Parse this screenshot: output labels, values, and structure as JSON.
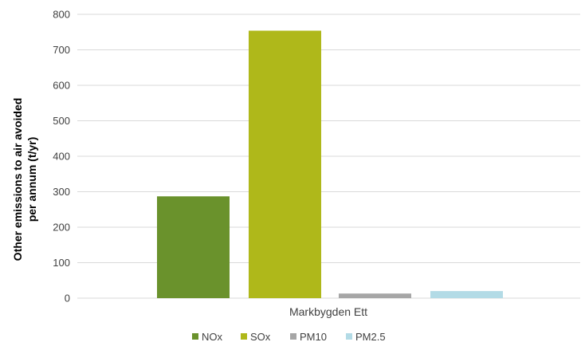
{
  "chart_data": {
    "type": "bar",
    "categories": [
      "Markbygden Ett"
    ],
    "series": [
      {
        "name": "NOx",
        "values": [
          287
        ],
        "color": "#6a922c"
      },
      {
        "name": "SOx",
        "values": [
          754
        ],
        "color": "#afb81a"
      },
      {
        "name": "PM10",
        "values": [
          13
        ],
        "color": "#a6a6a6"
      },
      {
        "name": "PM2.5",
        "values": [
          20
        ],
        "color": "#b3dbe6"
      }
    ],
    "title": "",
    "xlabel": "",
    "ylabel": "Other emissions to air avoided per annum (t/yr)",
    "ylabel_lines": [
      "Other emissions to air avoided",
      "per annum (t/yr)"
    ],
    "ylim": [
      0,
      800
    ],
    "yticks": [
      0,
      100,
      200,
      300,
      400,
      500,
      600,
      700,
      800
    ],
    "grid": true,
    "legend_position": "bottom"
  }
}
